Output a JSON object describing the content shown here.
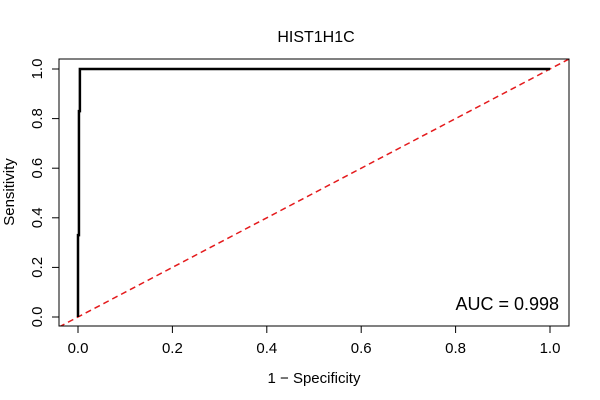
{
  "chart_data": {
    "type": "line",
    "title": "HIST1H1C",
    "xlabel": "1 − Specificity",
    "ylabel": "Sensitivity",
    "xlim": [
      0,
      1
    ],
    "ylim": [
      0,
      1
    ],
    "x_ticks": [
      0.0,
      0.2,
      0.4,
      0.6,
      0.8,
      1.0
    ],
    "x_tick_labels": [
      "0.0",
      "0.2",
      "0.4",
      "0.6",
      "0.8",
      "1.0"
    ],
    "y_ticks": [
      0.0,
      0.2,
      0.4,
      0.6,
      0.8,
      1.0
    ],
    "y_tick_labels": [
      "0.0",
      "0.2",
      "0.4",
      "0.6",
      "0.8",
      "1.0"
    ],
    "grid": false,
    "series": [
      {
        "color": "#000000",
        "style": "solid",
        "x": [
          0.0,
          0.0,
          0.002,
          0.002,
          0.004,
          0.004,
          1.0
        ],
        "y": [
          0.0,
          0.33,
          0.33,
          0.83,
          0.83,
          1.0,
          1.0
        ]
      },
      {
        "color": "#e41a1c",
        "style": "dashed",
        "x": [
          -0.04,
          1.04
        ],
        "y": [
          -0.04,
          1.04
        ]
      }
    ],
    "annotation": "AUC = 0.998"
  }
}
